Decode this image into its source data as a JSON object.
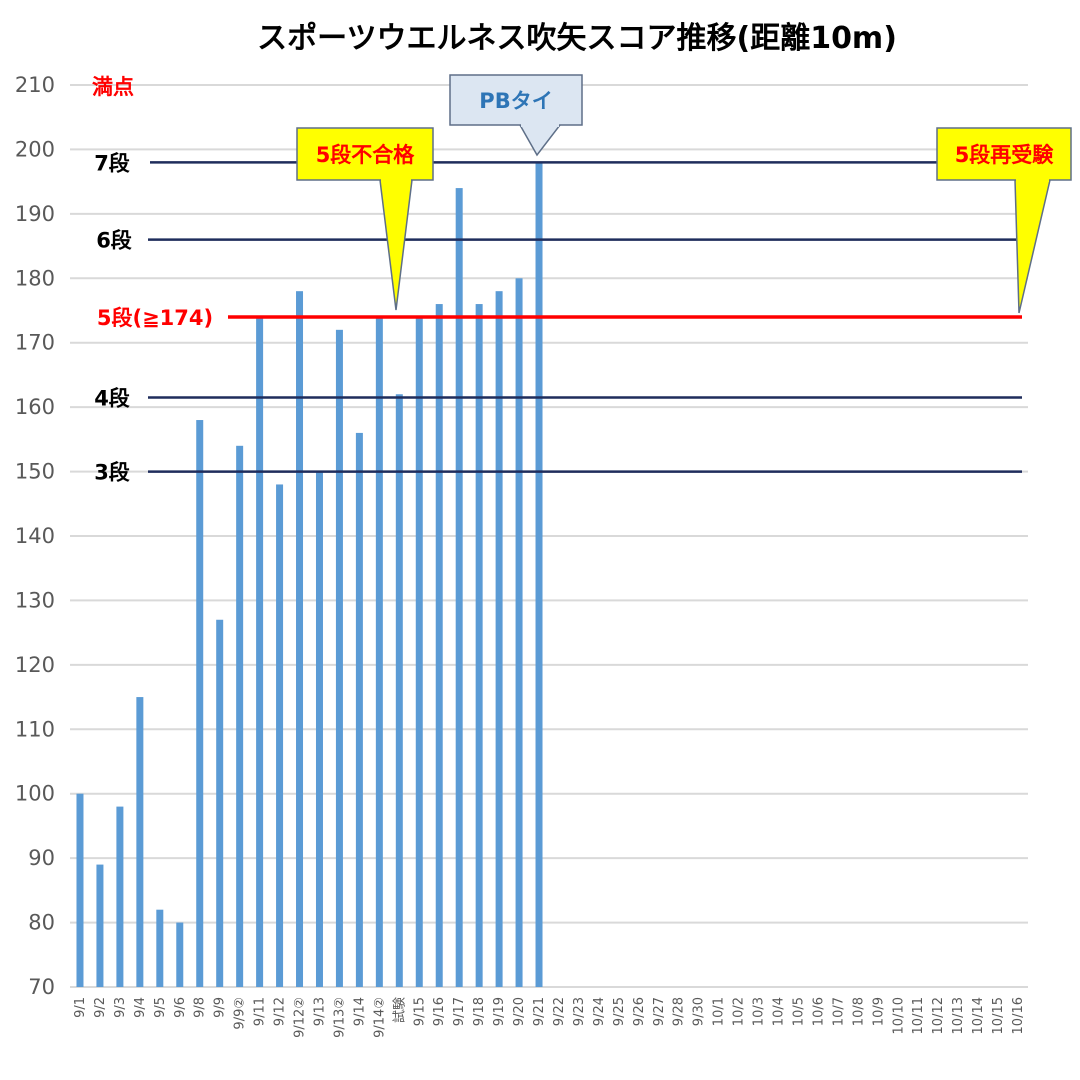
{
  "chart_data": {
    "type": "bar",
    "title": "スポーツウエルネス吹矢スコア推移(距離10m)",
    "ylim": [
      70,
      210
    ],
    "yticks": [
      "210",
      "200",
      "190",
      "180",
      "170",
      "160",
      "150",
      "140",
      "130",
      "120",
      "110",
      "100",
      "90",
      "80",
      "70"
    ],
    "grid": true,
    "bar_color": "#5b9bd5",
    "categories": [
      "9/1",
      "9/2",
      "9/3",
      "9/4",
      "9/5",
      "9/6",
      "9/8",
      "9/9",
      "9/9②",
      "9/11",
      "9/12",
      "9/12②",
      "9/13",
      "9/13②",
      "9/14",
      "9/14②",
      "試験",
      "9/15",
      "9/16",
      "9/17",
      "9/18",
      "9/19",
      "9/20",
      "9/21",
      "9/22",
      "9/23",
      "9/24",
      "9/25",
      "9/26",
      "9/27",
      "9/28",
      "9/30",
      "10/1",
      "10/2",
      "10/3",
      "10/4",
      "10/5",
      "10/6",
      "10/7",
      "10/8",
      "10/9",
      "10/10",
      "10/11",
      "10/12",
      "10/13",
      "10/14",
      "10/15",
      "10/16"
    ],
    "values": [
      100,
      89,
      98,
      115,
      82,
      80,
      158,
      127,
      154,
      174,
      148,
      178,
      150,
      172,
      156,
      174,
      162,
      174,
      176,
      194,
      176,
      178,
      180,
      198,
      null,
      null,
      null,
      null,
      null,
      null,
      null,
      null,
      null,
      null,
      null,
      null,
      null,
      null,
      null,
      null,
      null,
      null,
      null,
      null,
      null,
      null,
      null,
      null
    ],
    "reference_lines": [
      {
        "label": "7段",
        "value": 198,
        "color": "#1f2d5c",
        "label_color": "#000000"
      },
      {
        "label": "6段",
        "value": 186,
        "color": "#1f2d5c",
        "label_color": "#000000"
      },
      {
        "label": "5段(≧174)",
        "value": 174,
        "color": "#ff0000",
        "label_color": "#ff0000"
      },
      {
        "label": "4段",
        "value": 161.5,
        "color": "#1f2d5c",
        "label_color": "#000000"
      },
      {
        "label": "3段",
        "value": 150,
        "color": "#1f2d5c",
        "label_color": "#000000"
      }
    ],
    "full_score_label": "満点",
    "full_score_color": "#ff0000",
    "callouts": [
      {
        "text": "PBタイ",
        "style": "blue",
        "fill": "#dce6f2",
        "border": "#5e6f88",
        "text_color": "#2e75b6"
      },
      {
        "text": "5段不合格",
        "style": "yellow",
        "fill": "#ffff00",
        "border": "#5e6f88",
        "text_color": "#ff0000"
      },
      {
        "text": "5段再受験",
        "style": "yellow",
        "fill": "#ffff00",
        "border": "#5e6f88",
        "text_color": "#ff0000"
      }
    ]
  }
}
